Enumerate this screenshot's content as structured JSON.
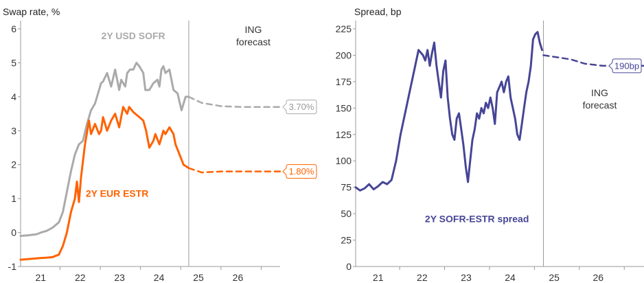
{
  "chart_data": [
    {
      "type": "line",
      "ylabel": "Swap rate, %",
      "ylim": [
        -1,
        6
      ],
      "xlim": [
        2020.5,
        2026.95
      ],
      "yticks": [
        "-1",
        "0",
        "1",
        "2",
        "3",
        "4",
        "5",
        "6"
      ],
      "xticks": [
        "21",
        "22",
        "23",
        "24",
        "25",
        "26"
      ],
      "forecast_divider_x": 2024.68,
      "forecast_label": [
        "ING",
        "forecast"
      ],
      "series": [
        {
          "name": "2Y USD SOFR",
          "color": "#aaaaaa",
          "x": [
            2020.5,
            2020.7,
            2020.9,
            2021.0,
            2021.15,
            2021.3,
            2021.45,
            2021.55,
            2021.65,
            2021.75,
            2021.85,
            2021.95,
            2022.05,
            2022.15,
            2022.25,
            2022.35,
            2022.45,
            2022.5,
            2022.55,
            2022.65,
            2022.75,
            2022.85,
            2022.95,
            2023.0,
            2023.1,
            2023.15,
            2023.22,
            2023.3,
            2023.38,
            2023.45,
            2023.55,
            2023.6,
            2023.7,
            2023.8,
            2023.9,
            2023.95,
            2024.0,
            2024.05,
            2024.1,
            2024.2,
            2024.3,
            2024.4,
            2024.5,
            2024.6,
            2024.68
          ],
          "y": [
            -0.1,
            -0.08,
            -0.05,
            0.0,
            0.05,
            0.15,
            0.3,
            0.6,
            1.2,
            1.8,
            2.3,
            2.6,
            2.7,
            3.2,
            3.6,
            3.8,
            4.2,
            4.4,
            4.45,
            4.7,
            4.3,
            4.8,
            4.2,
            4.5,
            4.3,
            4.7,
            4.8,
            4.8,
            5.0,
            4.9,
            4.7,
            4.2,
            4.2,
            4.4,
            4.5,
            4.3,
            4.8,
            4.9,
            4.7,
            4.8,
            4.2,
            4.1,
            3.6,
            4.0,
            4.0
          ]
        },
        {
          "name": "2Y USD SOFR forecast",
          "color": "#aaaaaa",
          "dashed": true,
          "x": [
            2024.68,
            2025.0,
            2025.5,
            2026.0,
            2026.5,
            2026.95
          ],
          "y": [
            4.0,
            3.82,
            3.72,
            3.7,
            3.7,
            3.7
          ]
        },
        {
          "name": "2Y EUR ESTR",
          "color": "#ff6200",
          "x": [
            2020.5,
            2020.7,
            2020.9,
            2021.0,
            2021.15,
            2021.3,
            2021.45,
            2021.55,
            2021.65,
            2021.75,
            2021.85,
            2021.9,
            2021.95,
            2022.0,
            2022.05,
            2022.1,
            2022.2,
            2022.25,
            2022.35,
            2022.45,
            2022.5,
            2022.55,
            2022.65,
            2022.75,
            2022.85,
            2022.95,
            2023.05,
            2023.15,
            2023.2,
            2023.3,
            2023.45,
            2023.55,
            2023.62,
            2023.7,
            2023.8,
            2023.85,
            2023.95,
            2024.05,
            2024.1,
            2024.2,
            2024.3,
            2024.35,
            2024.45,
            2024.55,
            2024.68
          ],
          "y": [
            -0.8,
            -0.78,
            -0.76,
            -0.75,
            -0.74,
            -0.72,
            -0.65,
            -0.4,
            0.0,
            0.6,
            1.0,
            1.5,
            0.9,
            1.6,
            2.1,
            2.6,
            3.3,
            2.9,
            3.2,
            2.9,
            3.0,
            3.4,
            3.0,
            3.3,
            3.5,
            3.1,
            3.7,
            3.5,
            3.7,
            3.55,
            3.4,
            3.3,
            3.0,
            2.5,
            2.7,
            2.9,
            2.6,
            3.0,
            2.9,
            3.1,
            2.9,
            2.6,
            2.3,
            2.0,
            1.9
          ]
        },
        {
          "name": "2Y EUR ESTR forecast",
          "color": "#ff6200",
          "dashed": true,
          "x": [
            2024.68,
            2025.0,
            2025.5,
            2026.0,
            2026.5,
            2026.95
          ],
          "y": [
            1.9,
            1.77,
            1.8,
            1.8,
            1.8,
            1.8
          ]
        }
      ],
      "series_labels": [
        {
          "text": "2Y USD SOFR",
          "x": 2023.3,
          "y": 5.7,
          "color": "#aaaaaa"
        },
        {
          "text": "2Y EUR ESTR",
          "x": 2022.9,
          "y": 1.05,
          "color": "#ff6200"
        }
      ],
      "callouts": [
        {
          "text": "3.70%",
          "value": 3.7,
          "color": "#aaaaaa"
        },
        {
          "text": "1.80%",
          "value": 1.8,
          "color": "#ff6200"
        }
      ]
    },
    {
      "type": "line",
      "ylabel": "Spread, bp",
      "ylim": [
        0,
        225
      ],
      "xlim": [
        2020.5,
        2026.95
      ],
      "yticks": [
        "0",
        "25",
        "50",
        "75",
        "100",
        "125",
        "150",
        "175",
        "200",
        "225"
      ],
      "xticks": [
        "21",
        "22",
        "23",
        "24",
        "25",
        "26"
      ],
      "forecast_divider_x": 2024.68,
      "forecast_label": [
        "ING",
        "forecast"
      ],
      "series": [
        {
          "name": "2Y SOFR-ESTR spread",
          "color": "#464596",
          "x": [
            2020.5,
            2020.6,
            2020.7,
            2020.8,
            2020.9,
            2021.0,
            2021.1,
            2021.2,
            2021.3,
            2021.4,
            2021.5,
            2021.6,
            2021.7,
            2021.8,
            2021.9,
            2022.0,
            2022.05,
            2022.1,
            2022.15,
            2022.2,
            2022.25,
            2022.3,
            2022.35,
            2022.4,
            2022.45,
            2022.5,
            2022.55,
            2022.6,
            2022.65,
            2022.7,
            2022.75,
            2022.8,
            2022.85,
            2022.9,
            2022.95,
            2023.0,
            2023.05,
            2023.1,
            2023.15,
            2023.2,
            2023.25,
            2023.3,
            2023.35,
            2023.4,
            2023.45,
            2023.5,
            2023.55,
            2023.6,
            2023.65,
            2023.7,
            2023.75,
            2023.8,
            2023.85,
            2023.9,
            2023.95,
            2024.0,
            2024.05,
            2024.1,
            2024.15,
            2024.2,
            2024.25,
            2024.3,
            2024.35,
            2024.4,
            2024.45,
            2024.5,
            2024.55,
            2024.6,
            2024.65
          ],
          "y": [
            75,
            72,
            74,
            78,
            73,
            76,
            80,
            78,
            82,
            100,
            125,
            145,
            165,
            185,
            205,
            200,
            195,
            205,
            190,
            202,
            212,
            190,
            175,
            160,
            185,
            195,
            160,
            140,
            125,
            120,
            140,
            145,
            130,
            115,
            95,
            80,
            100,
            120,
            130,
            145,
            140,
            150,
            145,
            155,
            150,
            160,
            150,
            135,
            165,
            170,
            175,
            165,
            175,
            180,
            160,
            150,
            140,
            125,
            120,
            135,
            150,
            165,
            175,
            190,
            215,
            220,
            222,
            212,
            205
          ]
        },
        {
          "name": "2Y SOFR-ESTR spread forecast",
          "color": "#464596",
          "dashed": true,
          "x": [
            2024.68,
            2025.0,
            2025.3,
            2025.6,
            2026.0,
            2026.5,
            2026.95
          ],
          "y": [
            200,
            198,
            196,
            192,
            190,
            190,
            190
          ]
        }
      ],
      "series_labels": [
        {
          "text": "2Y SOFR-ESTR spread",
          "x": 2023.2,
          "y": 42,
          "color": "#464596"
        }
      ],
      "callouts": [
        {
          "text": "190bp",
          "value": 190,
          "color": "#464596"
        }
      ]
    }
  ]
}
